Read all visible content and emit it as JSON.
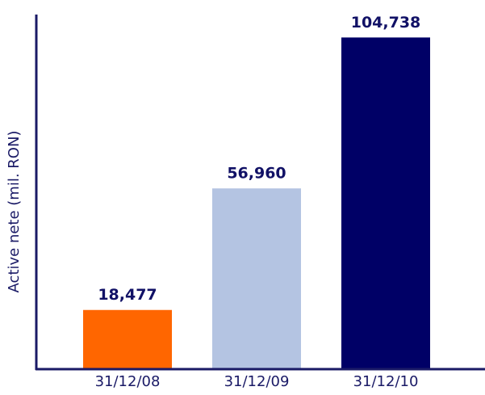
{
  "chart_data": {
    "type": "bar",
    "y_label": "Active nete (mil. RON)",
    "categories": [
      "31/12/08",
      "31/12/09",
      "31/12/10"
    ],
    "values": [
      18477,
      56960,
      104738
    ],
    "value_labels": [
      "18,477",
      "56,960",
      "104,738"
    ],
    "colors": [
      "#ff6600",
      "#b4c4e2",
      "#000066"
    ],
    "ylim": [
      0,
      112000
    ]
  }
}
